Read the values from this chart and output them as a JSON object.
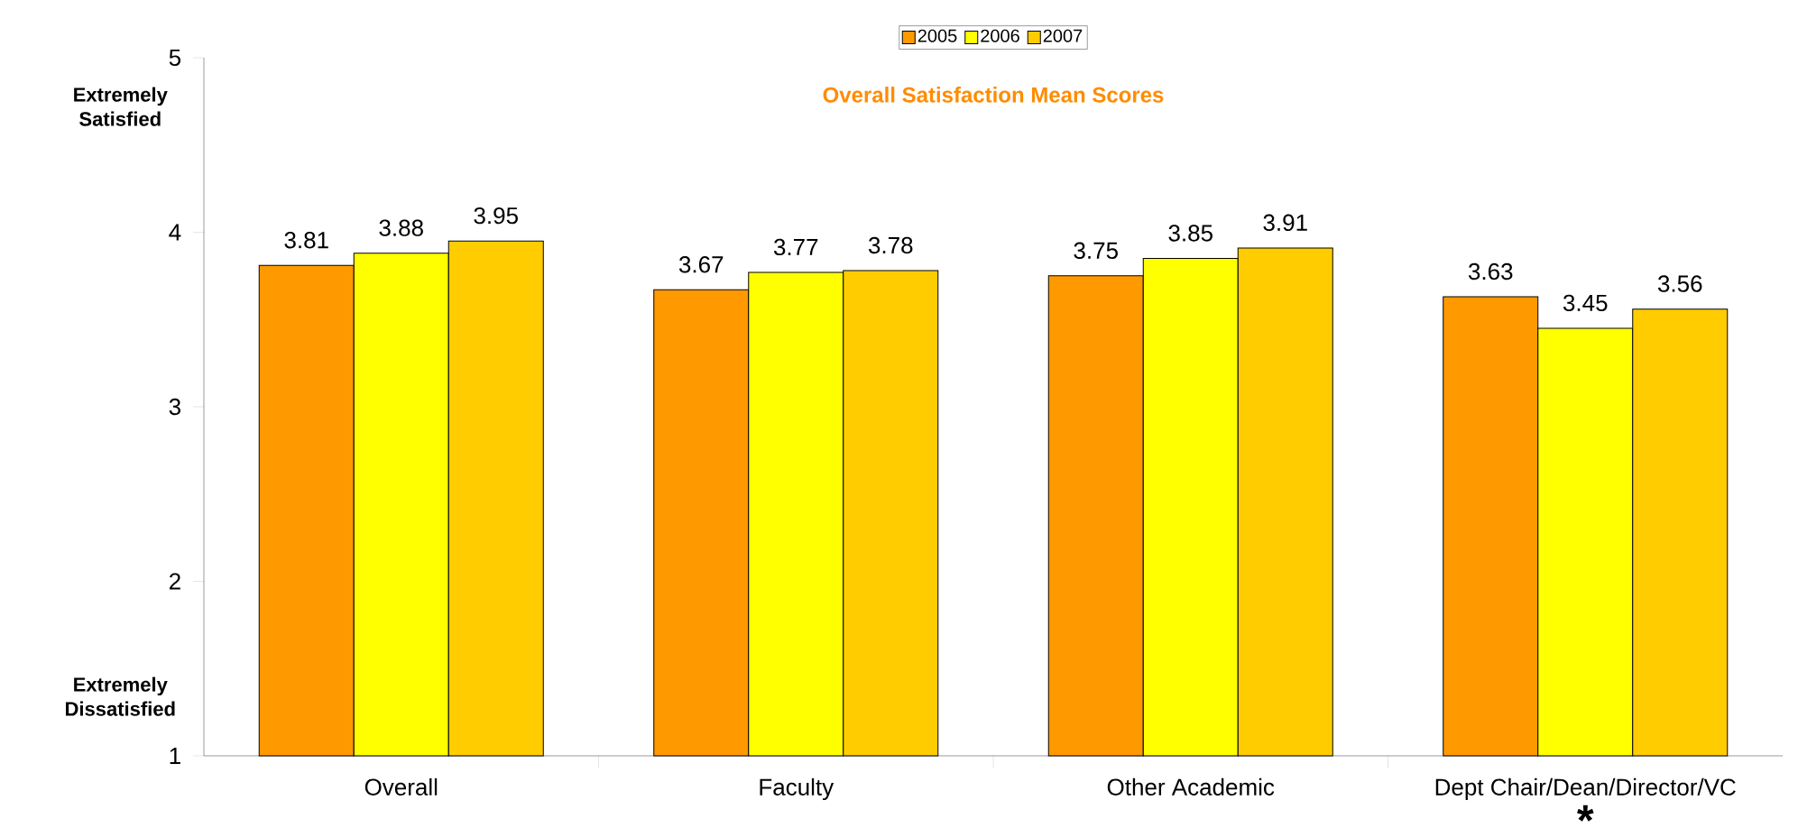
{
  "chart_data": {
    "type": "bar",
    "title": "Overall Satisfaction Mean Scores",
    "categories": [
      "Overall",
      "Faculty",
      "Other Academic",
      "Dept Chair/Dean/Director/VC"
    ],
    "series": [
      {
        "name": "2005",
        "color": "#ff9900",
        "values": [
          3.81,
          3.67,
          3.75,
          3.63
        ],
        "value_labels": [
          "3.81",
          "3.67",
          "3.75",
          "3.63"
        ]
      },
      {
        "name": "2006",
        "color": "#ffff00",
        "values": [
          3.88,
          3.77,
          3.85,
          3.45
        ],
        "value_labels": [
          "3.88",
          "3.77",
          "3.85",
          "3.45"
        ]
      },
      {
        "name": "2007",
        "color": "#ffcc00",
        "values": [
          3.95,
          3.78,
          3.91,
          3.56
        ],
        "value_labels": [
          "3.95",
          "3.78",
          "3.91",
          "3.56"
        ]
      }
    ],
    "ylim": [
      1,
      5
    ],
    "yticks": [
      1,
      2,
      3,
      4,
      5
    ],
    "grid": false,
    "legend": "top",
    "annotations": [
      "Extremely Satisfied",
      "Extremely Dissatisfied",
      "*"
    ]
  }
}
